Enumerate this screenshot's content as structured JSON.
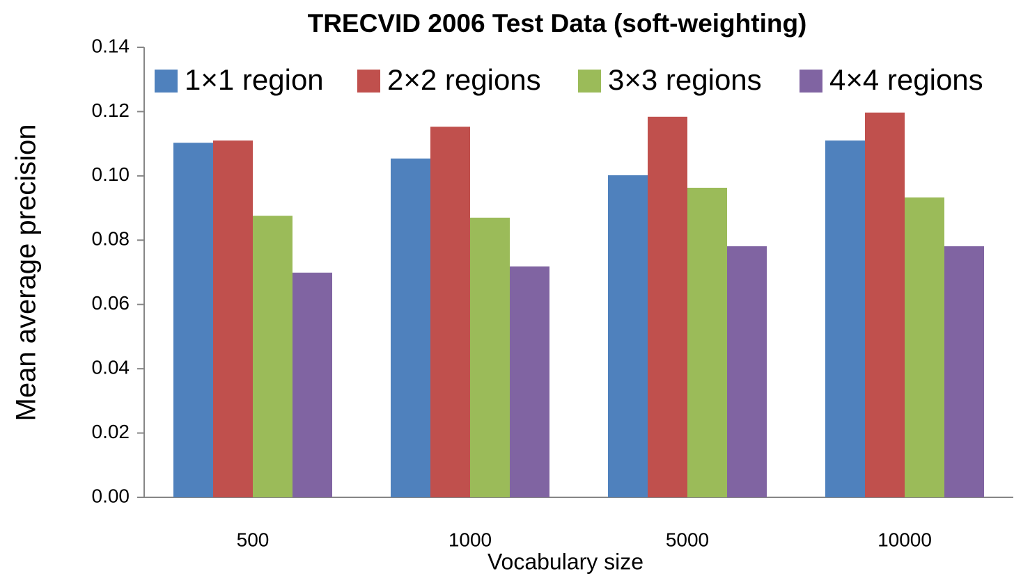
{
  "chart_data": {
    "type": "bar",
    "title": "TRECVID 2006 Test Data (soft-weighting)",
    "x_label": "Vocabulary size",
    "y_label": "Mean average precision",
    "categories": [
      "500",
      "1000",
      "5000",
      "10000"
    ],
    "series": [
      {
        "name": "1×1 region",
        "color": "#4f81bd",
        "values": [
          0.1103,
          0.1054,
          0.1002,
          0.111
        ]
      },
      {
        "name": "2×2 regions",
        "color": "#c0504d",
        "values": [
          0.111,
          0.1153,
          0.1184,
          0.1197
        ]
      },
      {
        "name": "3×3 regions",
        "color": "#9bbb59",
        "values": [
          0.0876,
          0.087,
          0.0963,
          0.0933
        ]
      },
      {
        "name": "4×4 regions",
        "color": "#8064a2",
        "values": [
          0.0699,
          0.0718,
          0.0781,
          0.0781
        ]
      }
    ],
    "ylim": [
      0,
      0.14
    ],
    "yticks": [
      {
        "value": 0,
        "label": "0.00"
      },
      0.02,
      0.04,
      0.06,
      0.08,
      {
        "value": 0.1,
        "label": "0.10"
      },
      {
        "value": 0.12,
        "label": "0.12"
      },
      {
        "value": 0.14,
        "label": "0.14"
      }
    ],
    "legend": "top",
    "grid": false
  }
}
